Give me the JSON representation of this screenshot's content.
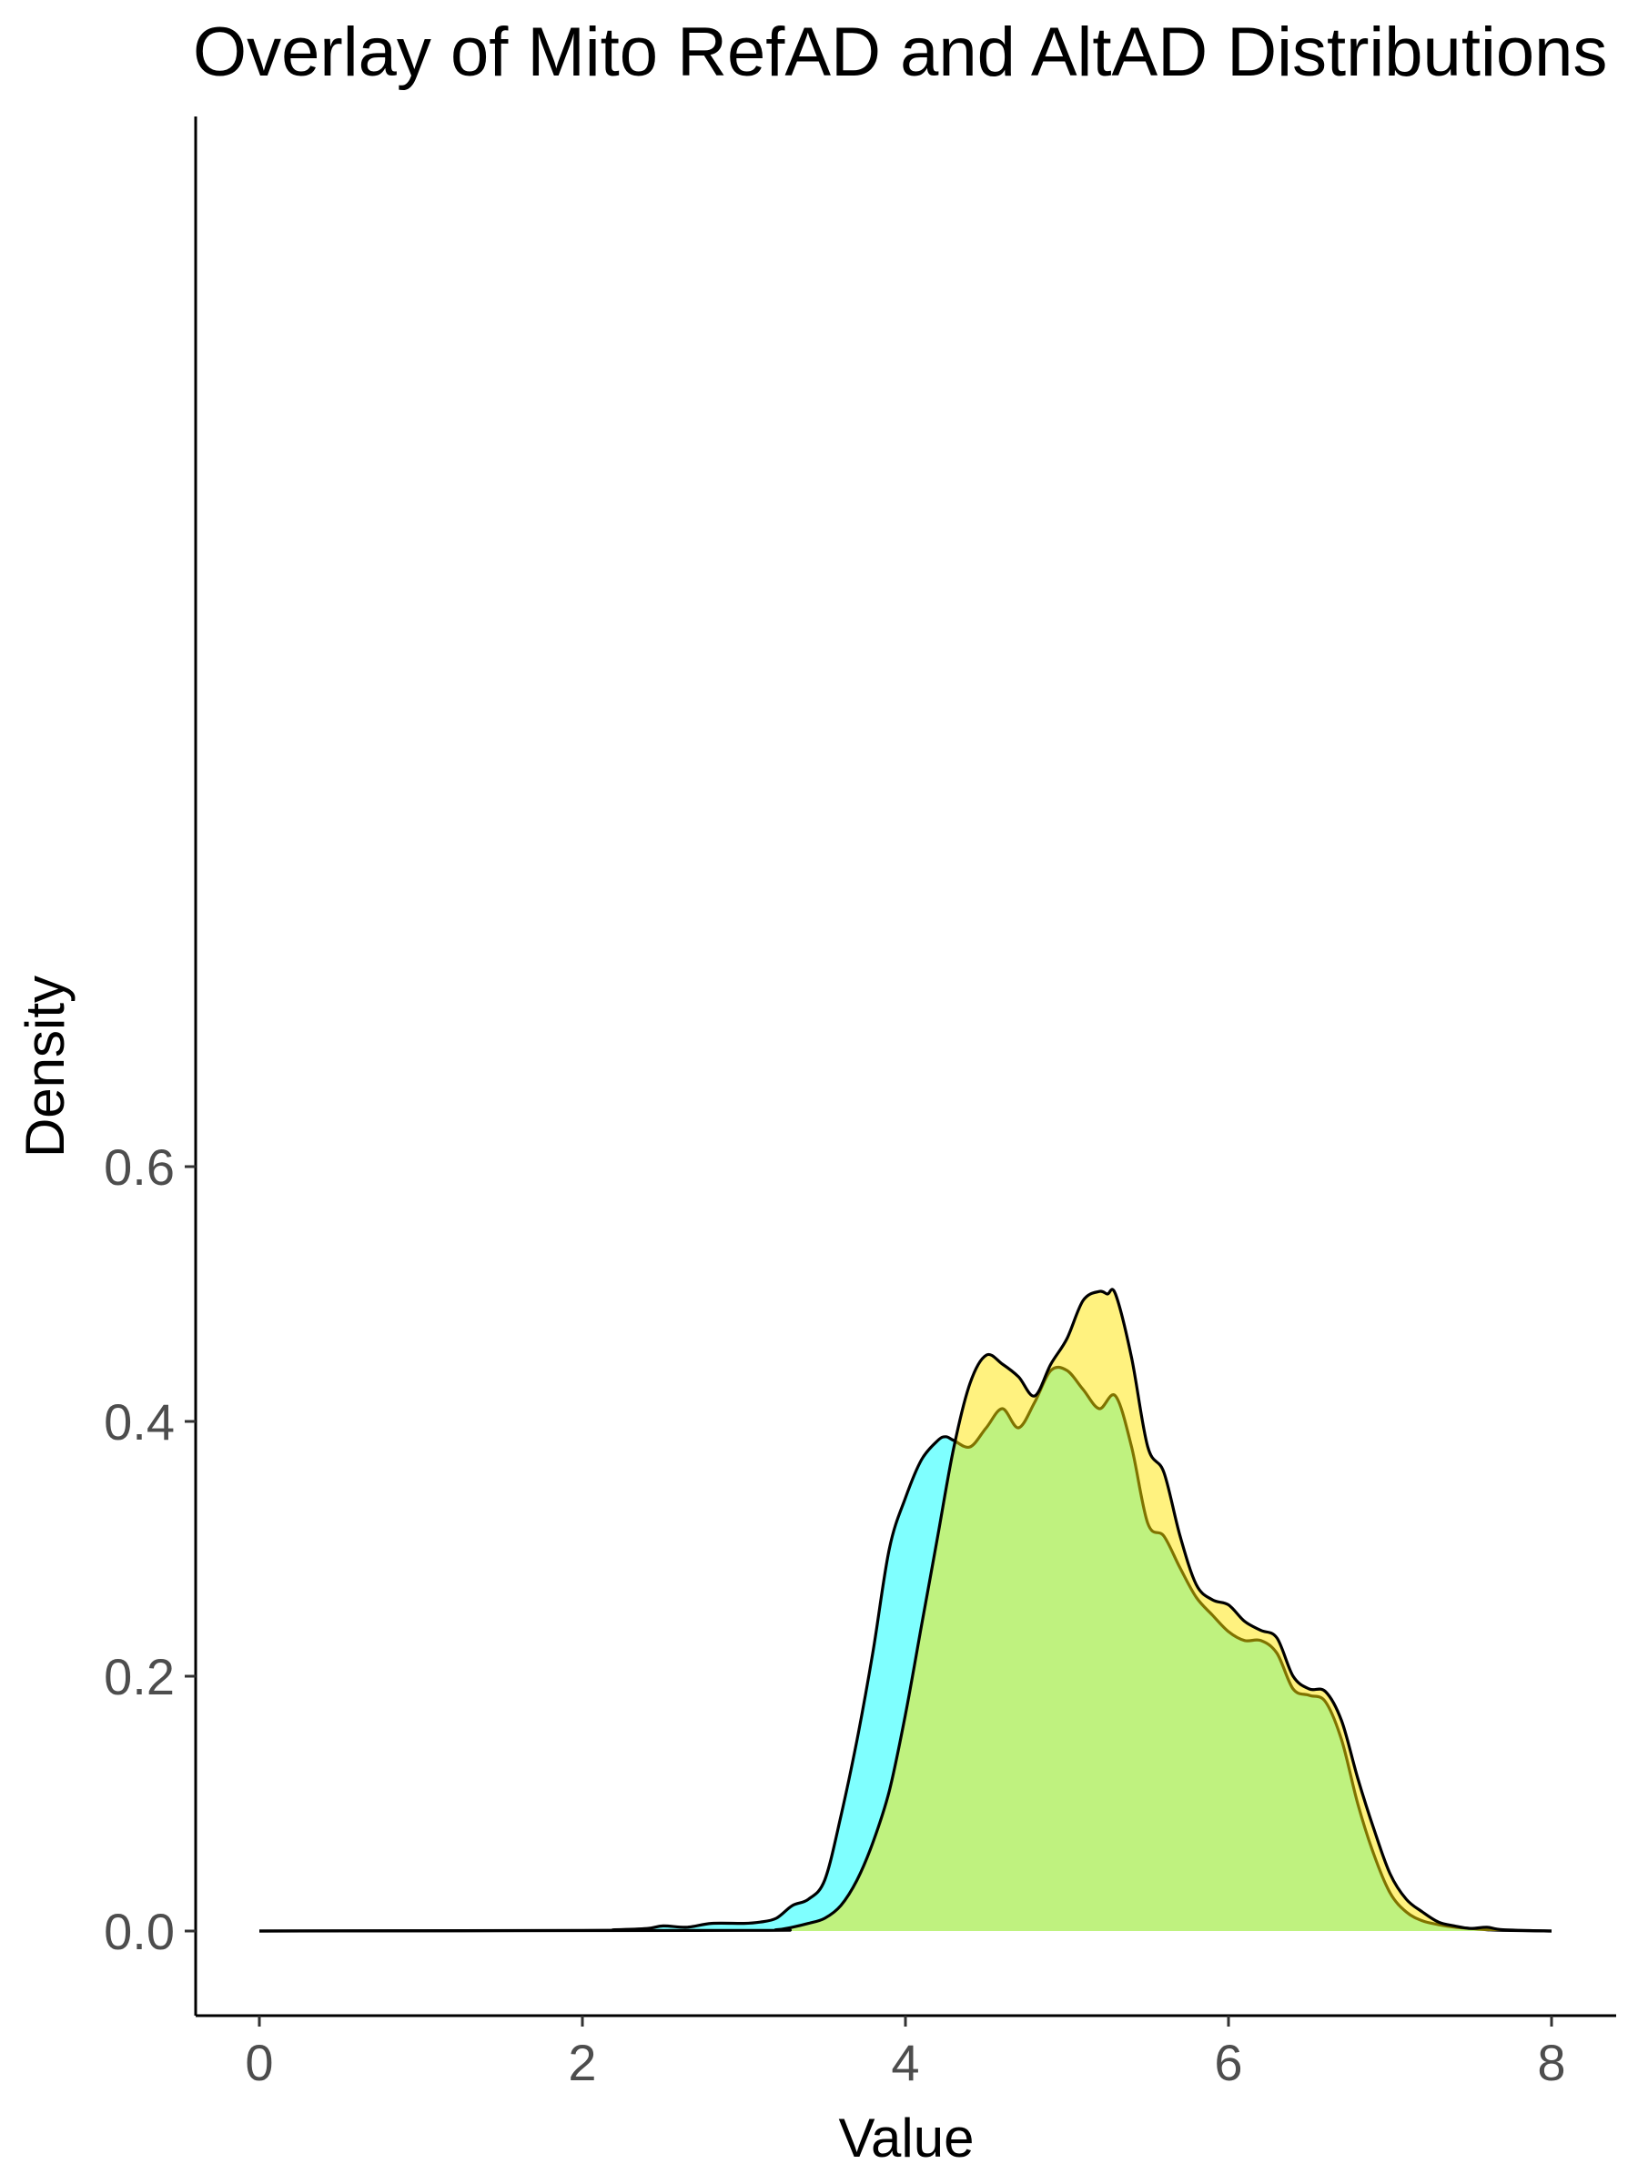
{
  "chart_data": {
    "type": "area",
    "title": "Overlay of Mito RefAD and AltAD Distributions",
    "xlabel": "Value",
    "ylabel": "Density",
    "xlim": [
      -0.4,
      8.2
    ],
    "ylim": [
      -0.033,
      0.715
    ],
    "xticks": [
      0,
      2,
      4,
      6,
      8
    ],
    "yticks": [
      0.0,
      0.2,
      0.4,
      0.6
    ],
    "ytick_labels": [
      "0.0",
      "0.2",
      "0.4",
      "0.6"
    ],
    "grid": false,
    "legend": "none",
    "series": [
      {
        "name": "RefAD",
        "color": "#00ffff",
        "x": [
          0,
          2.0,
          2.2,
          2.4,
          2.5,
          2.65,
          2.8,
          3.0,
          3.1,
          3.2,
          3.3,
          3.4,
          3.5,
          3.6,
          3.7,
          3.8,
          3.9,
          4.0,
          4.1,
          4.2,
          4.25,
          4.3,
          4.4,
          4.5,
          4.6,
          4.7,
          4.8,
          4.9,
          5.0,
          5.1,
          5.2,
          5.3,
          5.4,
          5.5,
          5.6,
          5.7,
          5.8,
          5.9,
          6.0,
          6.1,
          6.2,
          6.3,
          6.4,
          6.5,
          6.6,
          6.7,
          6.8,
          6.9,
          7.0,
          7.1,
          7.2,
          7.3,
          7.4,
          7.5,
          7.6,
          7.7,
          8.0
        ],
        "y": [
          0,
          0.0005,
          0.001,
          0.002,
          0.004,
          0.003,
          0.006,
          0.006,
          0.007,
          0.01,
          0.02,
          0.025,
          0.04,
          0.09,
          0.15,
          0.22,
          0.3,
          0.34,
          0.37,
          0.385,
          0.388,
          0.385,
          0.38,
          0.395,
          0.41,
          0.395,
          0.415,
          0.44,
          0.44,
          0.425,
          0.41,
          0.42,
          0.38,
          0.32,
          0.31,
          0.285,
          0.262,
          0.248,
          0.235,
          0.228,
          0.228,
          0.218,
          0.19,
          0.185,
          0.18,
          0.15,
          0.1,
          0.06,
          0.03,
          0.015,
          0.008,
          0.005,
          0.003,
          0.002,
          0.001,
          0.0005,
          0
        ]
      },
      {
        "name": "AltAD",
        "color": "#ffe600",
        "x": [
          0,
          3.0,
          3.2,
          3.3,
          3.4,
          3.5,
          3.6,
          3.7,
          3.8,
          3.9,
          4.0,
          4.1,
          4.2,
          4.3,
          4.4,
          4.5,
          4.6,
          4.7,
          4.8,
          4.9,
          5.0,
          5.1,
          5.2,
          5.25,
          5.3,
          5.4,
          5.5,
          5.6,
          5.7,
          5.8,
          5.9,
          6.0,
          6.1,
          6.2,
          6.3,
          6.4,
          6.5,
          6.6,
          6.7,
          6.8,
          6.9,
          7.0,
          7.1,
          7.2,
          7.3,
          7.4,
          7.5,
          7.6,
          7.7,
          8.0
        ],
        "y": [
          0,
          0.0005,
          0.001,
          0.003,
          0.006,
          0.01,
          0.02,
          0.04,
          0.07,
          0.11,
          0.17,
          0.24,
          0.31,
          0.38,
          0.43,
          0.452,
          0.445,
          0.435,
          0.42,
          0.445,
          0.465,
          0.495,
          0.502,
          0.5,
          0.5,
          0.45,
          0.38,
          0.36,
          0.31,
          0.272,
          0.26,
          0.256,
          0.243,
          0.236,
          0.23,
          0.2,
          0.19,
          0.188,
          0.165,
          0.12,
          0.08,
          0.045,
          0.025,
          0.015,
          0.007,
          0.004,
          0.002,
          0.003,
          0.001,
          0
        ]
      }
    ]
  }
}
